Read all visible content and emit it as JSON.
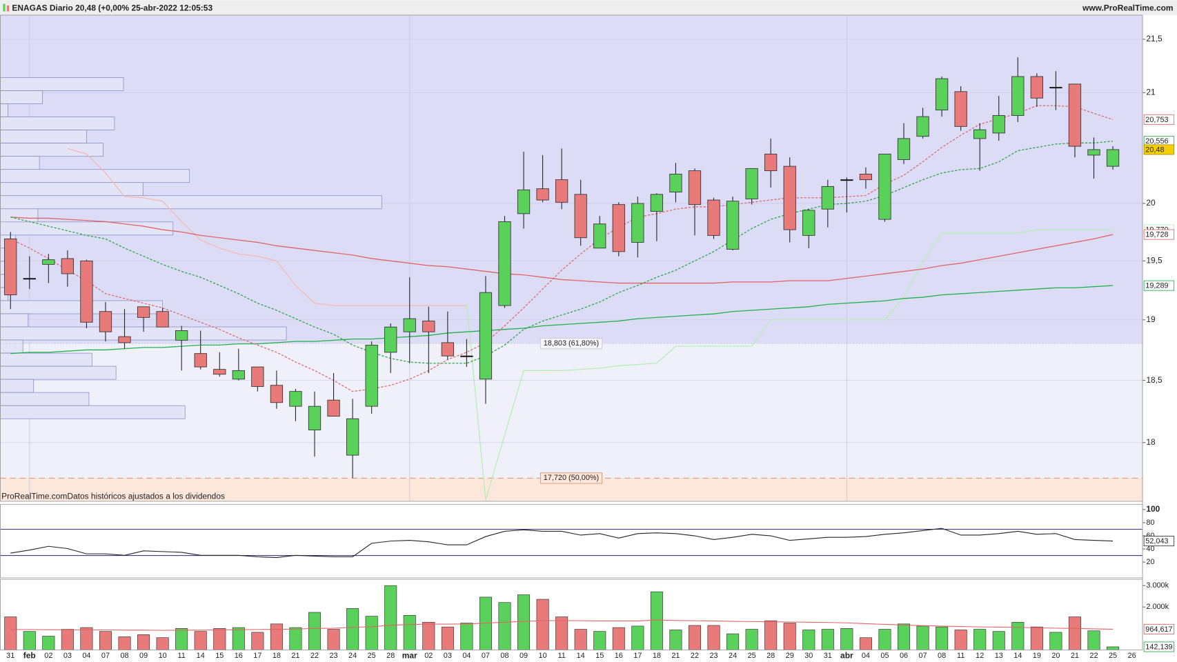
{
  "header": {
    "title": "ENAGAS Diario 20,48 (+0,00% 25-abr-2022 12:05:53",
    "site": "www.ProRealTime.com"
  },
  "chart_data": [
    {
      "type": "candlestick",
      "log": true,
      "grid": true,
      "note": "ProRealTime.comDatos históricos ajustados a los dividendos",
      "categories": [
        "31",
        "feb",
        "02",
        "03",
        "04",
        "07",
        "08",
        "09",
        "10",
        "11",
        "14",
        "15",
        "16",
        "17",
        "18",
        "21",
        "22",
        "23",
        "24",
        "25",
        "28",
        "mar",
        "02",
        "03",
        "04",
        "07",
        "08",
        "09",
        "10",
        "11",
        "14",
        "15",
        "16",
        "17",
        "18",
        "21",
        "22",
        "23",
        "24",
        "25",
        "28",
        "29",
        "30",
        "31",
        "abr",
        "04",
        "05",
        "06",
        "07",
        "08",
        "11",
        "12",
        "13",
        "14",
        "19",
        "20",
        "21",
        "22",
        "25",
        "26"
      ],
      "open": [
        19.69,
        19.35,
        19.47,
        19.52,
        19.5,
        19.07,
        18.86,
        19.11,
        19.07,
        18.83,
        18.72,
        18.59,
        18.51,
        18.61,
        18.46,
        18.29,
        18.1,
        18.34,
        17.9,
        18.29,
        18.73,
        18.9,
        18.99,
        18.81,
        18.7,
        18.51,
        19.12,
        19.91,
        20.13,
        20.21,
        20.08,
        19.61,
        19.99,
        19.66,
        19.93,
        20.1,
        20.29,
        20.03,
        19.6,
        20.04,
        20.44,
        20.33,
        19.72,
        19.95,
        20.21,
        20.26,
        19.86,
        20.39,
        20.6,
        20.84,
        21.01,
        20.58,
        20.63,
        20.79,
        21.15,
        21.05,
        21.08,
        20.43,
        20.33,
        null
      ],
      "high": [
        19.75,
        19.54,
        19.56,
        19.59,
        19.51,
        19.15,
        19.09,
        19.11,
        19.1,
        18.95,
        18.91,
        18.73,
        18.76,
        18.61,
        18.58,
        18.43,
        18.41,
        18.56,
        18.35,
        18.82,
        18.97,
        19.36,
        19.11,
        19.07,
        18.84,
        19.37,
        19.89,
        20.46,
        20.43,
        20.49,
        20.21,
        19.89,
        20.01,
        20.06,
        20.09,
        20.36,
        20.31,
        20.05,
        20.06,
        20.31,
        20.58,
        20.41,
        19.95,
        20.21,
        20.23,
        20.32,
        20.44,
        20.72,
        20.86,
        21.15,
        21.06,
        20.72,
        20.97,
        21.33,
        21.18,
        21.2,
        21.08,
        20.59,
        20.51,
        null
      ],
      "low": [
        19.09,
        19.26,
        19.31,
        19.28,
        18.93,
        18.82,
        18.76,
        18.9,
        18.94,
        18.58,
        18.59,
        18.53,
        18.5,
        18.41,
        18.27,
        18.17,
        17.89,
        18.21,
        17.72,
        18.23,
        18.56,
        18.64,
        18.56,
        18.67,
        18.61,
        18.31,
        19.1,
        19.78,
        20.01,
        19.95,
        19.63,
        19.61,
        19.54,
        19.53,
        19.67,
        20.01,
        19.72,
        19.69,
        19.59,
        19.99,
        20.14,
        19.66,
        19.61,
        19.79,
        19.92,
        20.13,
        19.84,
        20.35,
        20.58,
        20.78,
        20.65,
        20.29,
        20.56,
        20.73,
        20.87,
        20.84,
        20.41,
        20.22,
        20.3,
        null
      ],
      "close": [
        19.21,
        19.35,
        19.51,
        19.39,
        18.98,
        18.9,
        18.81,
        19.02,
        18.94,
        18.91,
        18.61,
        18.55,
        18.58,
        18.45,
        18.32,
        18.41,
        18.29,
        18.21,
        18.19,
        18.79,
        18.94,
        19.01,
        18.9,
        18.7,
        18.7,
        19.23,
        19.84,
        20.12,
        20.03,
        20.01,
        19.7,
        19.82,
        19.58,
        20.0,
        20.08,
        20.26,
        19.99,
        19.72,
        20.02,
        20.31,
        20.29,
        19.77,
        19.94,
        20.15,
        20.21,
        20.21,
        20.44,
        20.58,
        20.78,
        21.13,
        20.69,
        20.66,
        20.79,
        21.15,
        20.95,
        21.05,
        20.51,
        20.48,
        20.48,
        null
      ],
      "close_label": "20,48",
      "up_color": "#5ad15a",
      "down_color": "#e87a7a",
      "neutral_color": "#111111",
      "ylim": [
        17.54,
        21.73
      ],
      "yticks": [
        {
          "value": 21.5,
          "label": "21,5"
        },
        21,
        20,
        {
          "value": 19.5,
          "label": "19,5"
        },
        19,
        {
          "value": 18.5,
          "label": "18,5"
        },
        18
      ],
      "background_colors": [
        "#dcdcf6",
        "#f0f0fb",
        "#fde6da"
      ],
      "annotations": [
        {
          "value": 18.803,
          "label": "18,803 (61,80%)"
        },
        {
          "value": 17.72,
          "label": "17,720 (50,00%)"
        }
      ],
      "volume_profile": {
        "range": [
          18.19,
          21.14
        ],
        "color": "#e4e4f8",
        "values": [
          164,
          56,
          10,
          152,
          115,
          137,
          52,
          252,
          190,
          508,
          50,
          230,
          20,
          15,
          10,
          15,
          10,
          216,
          37,
          381,
          30,
          122,
          154,
          44,
          118,
          246
        ]
      },
      "series": [
        {
          "color": "#f5b8b0",
          "dash": false,
          "values": [
            null,
            null,
            null,
            20.49,
            20.44,
            20.27,
            20.06,
            20.05,
            20.02,
            19.84,
            19.68,
            19.61,
            19.56,
            19.54,
            19.5,
            19.29,
            19.14,
            19.12,
            19.12,
            19.12,
            19.12,
            19.12,
            19.12,
            19.12,
            19.12,
            null,
            null,
            null,
            null,
            null,
            null,
            null,
            null,
            null,
            null,
            null,
            null,
            null,
            null,
            null,
            null,
            null,
            null,
            null,
            null,
            null,
            null,
            null,
            null,
            null,
            null,
            null,
            null,
            null,
            null,
            null,
            null,
            null,
            null,
            null
          ]
        },
        {
          "color": "#b4efb4",
          "dash": false,
          "values": [
            null,
            null,
            null,
            null,
            null,
            null,
            null,
            null,
            null,
            null,
            null,
            null,
            null,
            null,
            null,
            null,
            null,
            null,
            null,
            null,
            null,
            null,
            null,
            null,
            19.14,
            17.55,
            18.06,
            18.58,
            18.58,
            18.58,
            18.59,
            18.6,
            18.62,
            18.63,
            18.64,
            18.78,
            18.78,
            18.78,
            18.78,
            18.78,
            19.0,
            19.0,
            19.0,
            19.0,
            19.0,
            19.0,
            19.0,
            19.19,
            19.49,
            19.74,
            19.74,
            19.74,
            19.74,
            19.74,
            19.77,
            19.77,
            19.77,
            19.77,
            19.77,
            null
          ],
          "last_label": "19,770"
        },
        {
          "color": "#e06464",
          "dash": false,
          "values": [
            19.88,
            19.87,
            19.87,
            19.86,
            19.85,
            19.84,
            19.82,
            19.8,
            19.77,
            19.75,
            19.72,
            19.7,
            19.68,
            19.66,
            19.63,
            19.61,
            19.59,
            19.57,
            19.55,
            19.52,
            19.5,
            19.48,
            19.46,
            19.45,
            19.43,
            19.41,
            19.39,
            19.38,
            19.36,
            19.34,
            19.33,
            19.32,
            19.31,
            19.31,
            19.31,
            19.31,
            19.31,
            19.31,
            19.32,
            19.32,
            19.32,
            19.33,
            19.33,
            19.33,
            19.35,
            19.37,
            19.39,
            19.41,
            19.43,
            19.46,
            19.48,
            19.51,
            19.54,
            19.57,
            19.6,
            19.63,
            19.66,
            19.69,
            19.728,
            null
          ],
          "last_label": "19,728"
        },
        {
          "color": "#22b04a",
          "dash": false,
          "values": [
            18.72,
            18.73,
            18.73,
            18.74,
            18.75,
            18.75,
            18.76,
            18.77,
            18.77,
            18.78,
            18.79,
            18.79,
            18.8,
            18.8,
            18.81,
            18.82,
            18.82,
            18.83,
            18.84,
            18.84,
            18.85,
            18.86,
            18.87,
            18.89,
            18.9,
            18.91,
            18.92,
            18.93,
            18.95,
            18.96,
            18.97,
            18.98,
            18.99,
            19.01,
            19.02,
            19.03,
            19.04,
            19.05,
            19.07,
            19.08,
            19.09,
            19.1,
            19.11,
            19.13,
            19.14,
            19.15,
            19.16,
            19.18,
            19.19,
            19.21,
            19.22,
            19.23,
            19.24,
            19.25,
            19.26,
            19.27,
            19.27,
            19.28,
            19.289,
            null
          ],
          "last_label": "19,289"
        },
        {
          "color": "#2aa84a",
          "dash": true,
          "values": [
            19.88,
            19.84,
            19.8,
            19.76,
            19.72,
            19.69,
            19.61,
            19.54,
            19.47,
            19.41,
            19.36,
            19.29,
            19.22,
            19.14,
            19.08,
            19.01,
            18.94,
            18.88,
            18.79,
            18.73,
            18.68,
            18.65,
            18.64,
            18.64,
            18.64,
            18.7,
            18.79,
            18.92,
            18.99,
            19.04,
            19.09,
            19.15,
            19.23,
            19.29,
            19.36,
            19.42,
            19.5,
            19.58,
            19.68,
            19.78,
            19.86,
            19.91,
            19.95,
            19.99,
            20.0,
            20.02,
            20.07,
            20.14,
            20.21,
            20.27,
            20.3,
            20.31,
            20.37,
            20.47,
            20.5,
            20.53,
            20.54,
            20.54,
            20.556,
            null
          ],
          "last_label": "20,556"
        },
        {
          "color": "#e06a6a",
          "dash": true,
          "values": [
            19.69,
            19.61,
            19.52,
            19.42,
            19.33,
            19.22,
            19.18,
            19.14,
            19.1,
            19.04,
            18.98,
            18.92,
            18.85,
            18.79,
            18.73,
            18.65,
            18.58,
            18.5,
            18.41,
            18.43,
            18.46,
            18.51,
            18.58,
            18.67,
            18.73,
            18.81,
            18.95,
            19.1,
            19.26,
            19.42,
            19.56,
            19.69,
            19.79,
            19.88,
            19.91,
            19.95,
            19.97,
            19.97,
            19.99,
            20.01,
            20.03,
            20.05,
            20.05,
            20.05,
            20.06,
            20.07,
            20.17,
            20.25,
            20.37,
            20.5,
            20.61,
            20.71,
            20.76,
            20.81,
            20.88,
            20.88,
            20.87,
            20.81,
            20.753,
            null
          ],
          "last_label": "20,753"
        }
      ]
    },
    {
      "type": "line",
      "color": "#222222",
      "level_color": "#3a3a8a",
      "levels": [
        70,
        30
      ],
      "ylim": [
        -4,
        108
      ],
      "yticks": [
        100,
        80,
        60,
        40,
        20
      ],
      "values": [
        33.7,
        38.3,
        44.0,
        40.6,
        32.6,
        32.6,
        30.3,
        37.1,
        36.0,
        34.9,
        30.3,
        30.3,
        30.3,
        28.0,
        26.9,
        30.3,
        29.1,
        28.0,
        28.0,
        48.6,
        52.0,
        53.1,
        50.9,
        46.3,
        46.3,
        58.9,
        66.9,
        69.1,
        66.9,
        66.9,
        61.1,
        63.4,
        56.6,
        63.4,
        64.6,
        63.4,
        60.0,
        54.3,
        57.7,
        62.3,
        60.0,
        53.1,
        55.4,
        57.7,
        57.7,
        58.9,
        62.3,
        64.6,
        68.0,
        71.4,
        61.1,
        61.1,
        63.4,
        66.9,
        62.3,
        63.4,
        54.3,
        53.1,
        52.043,
        null
      ],
      "last_label": "52,043"
    },
    {
      "type": "bar",
      "ylim": [
        0,
        3290000
      ],
      "yticks": [
        {
          "value": 3000000,
          "label": "3.000k"
        },
        {
          "value": 2000000,
          "label": "2.000k"
        }
      ],
      "up_color": "#5ad15a",
      "down_color": "#e87a7a",
      "values": [
        1540000,
        860000,
        640000,
        960000,
        1040000,
        860000,
        610000,
        710000,
        570000,
        1000000,
        860000,
        1000000,
        1040000,
        820000,
        1210000,
        1040000,
        1750000,
        960000,
        1930000,
        1570000,
        3000000,
        1610000,
        1290000,
        1070000,
        1250000,
        2460000,
        2210000,
        2570000,
        2360000,
        1540000,
        960000,
        860000,
        1040000,
        1110000,
        2710000,
        930000,
        1140000,
        1140000,
        750000,
        960000,
        1360000,
        1250000,
        930000,
        960000,
        1000000,
        570000,
        960000,
        1210000,
        1110000,
        1070000,
        930000,
        960000,
        860000,
        1290000,
        1070000,
        820000,
        1540000,
        890000,
        142139,
        null
      ],
      "last_label": "142,139",
      "ma": {
        "color": "#e06464",
        "values": [
          950000,
          950000,
          940000,
          940000,
          930000,
          930000,
          920000,
          920000,
          910000,
          920000,
          920000,
          930000,
          940000,
          950000,
          960000,
          970000,
          1000000,
          1010000,
          1050000,
          1080000,
          1150000,
          1180000,
          1200000,
          1200000,
          1210000,
          1250000,
          1290000,
          1330000,
          1360000,
          1370000,
          1360000,
          1350000,
          1350000,
          1350000,
          1390000,
          1370000,
          1360000,
          1350000,
          1330000,
          1320000,
          1310000,
          1300000,
          1290000,
          1280000,
          1260000,
          1220000,
          1190000,
          1160000,
          1130000,
          1110000,
          1090000,
          1070000,
          1060000,
          1050000,
          1030000,
          1010000,
          1000000,
          980000,
          964617,
          null
        ],
        "last_label": "964,617"
      }
    }
  ]
}
